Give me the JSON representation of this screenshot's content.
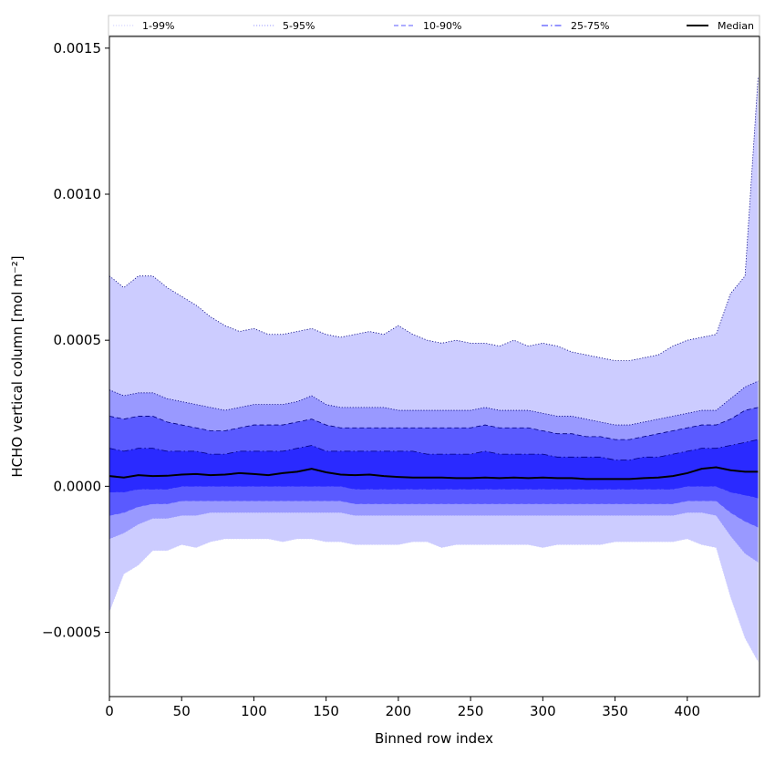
{
  "chart_data": {
    "type": "area",
    "title": "",
    "xlabel": "Binned row index",
    "ylabel": "HCHO vertical column [mol m⁻²]",
    "xlim": [
      0,
      450
    ],
    "ylim": [
      -0.00072,
      0.00154
    ],
    "x_ticks": [
      0,
      50,
      100,
      150,
      200,
      250,
      300,
      350,
      400
    ],
    "x_tick_labels": [
      "0",
      "50",
      "100",
      "150",
      "200",
      "250",
      "300",
      "350",
      "400"
    ],
    "y_ticks": [
      -0.0005,
      0.0,
      0.0005,
      0.001,
      0.0015
    ],
    "y_tick_labels": [
      "−0.0005",
      "0.0000",
      "0.0005",
      "0.0010",
      "0.0015"
    ],
    "grid": false,
    "legend": {
      "placement": "top",
      "ncol": 5
    },
    "x": [
      0,
      10,
      20,
      30,
      40,
      50,
      60,
      70,
      80,
      90,
      100,
      110,
      120,
      130,
      140,
      150,
      160,
      170,
      180,
      190,
      200,
      210,
      220,
      230,
      240,
      250,
      260,
      270,
      280,
      290,
      300,
      310,
      320,
      330,
      340,
      350,
      360,
      370,
      380,
      390,
      400,
      410,
      420,
      430,
      440,
      449
    ],
    "series": [
      {
        "name": "1-99%",
        "style": "dotted",
        "color": "#ccccff",
        "lower": [
          -0.00043,
          -0.0003,
          -0.00027,
          -0.00022,
          -0.00022,
          -0.0002,
          -0.00021,
          -0.00019,
          -0.00018,
          -0.00018,
          -0.00018,
          -0.00018,
          -0.00019,
          -0.00018,
          -0.00018,
          -0.00019,
          -0.00019,
          -0.0002,
          -0.0002,
          -0.0002,
          -0.0002,
          -0.00019,
          -0.00019,
          -0.00021,
          -0.0002,
          -0.0002,
          -0.0002,
          -0.0002,
          -0.0002,
          -0.0002,
          -0.00021,
          -0.0002,
          -0.0002,
          -0.0002,
          -0.0002,
          -0.00019,
          -0.00019,
          -0.00019,
          -0.00019,
          -0.00019,
          -0.00018,
          -0.0002,
          -0.00021,
          -0.00038,
          -0.00052,
          -0.0006
        ],
        "upper": [
          0.00072,
          0.00068,
          0.00072,
          0.00072,
          0.00068,
          0.00065,
          0.00062,
          0.00058,
          0.00055,
          0.00053,
          0.00054,
          0.00052,
          0.00052,
          0.00053,
          0.00054,
          0.00052,
          0.00051,
          0.00052,
          0.00053,
          0.00052,
          0.00055,
          0.00052,
          0.0005,
          0.00049,
          0.0005,
          0.00049,
          0.00049,
          0.00048,
          0.0005,
          0.00048,
          0.00049,
          0.00048,
          0.00046,
          0.00045,
          0.00044,
          0.00043,
          0.00043,
          0.00044,
          0.00045,
          0.00048,
          0.0005,
          0.00051,
          0.00052,
          0.00066,
          0.00072,
          0.0014
        ]
      },
      {
        "name": "5-95%",
        "style": "dotted",
        "color": "#9999ff",
        "lower": [
          -0.00018,
          -0.00016,
          -0.00013,
          -0.00011,
          -0.00011,
          -0.0001,
          -0.0001,
          -9e-05,
          -9e-05,
          -9e-05,
          -9e-05,
          -9e-05,
          -9e-05,
          -9e-05,
          -9e-05,
          -9e-05,
          -9e-05,
          -0.0001,
          -0.0001,
          -0.0001,
          -0.0001,
          -0.0001,
          -0.0001,
          -0.0001,
          -0.0001,
          -0.0001,
          -0.0001,
          -0.0001,
          -0.0001,
          -0.0001,
          -0.0001,
          -0.0001,
          -0.0001,
          -0.0001,
          -0.0001,
          -0.0001,
          -0.0001,
          -0.0001,
          -0.0001,
          -0.0001,
          -9e-05,
          -9e-05,
          -0.0001,
          -0.00017,
          -0.00023,
          -0.00026
        ],
        "upper": [
          0.00033,
          0.00031,
          0.00032,
          0.00032,
          0.0003,
          0.00029,
          0.00028,
          0.00027,
          0.00026,
          0.00027,
          0.00028,
          0.00028,
          0.00028,
          0.00029,
          0.00031,
          0.00028,
          0.00027,
          0.00027,
          0.00027,
          0.00027,
          0.00026,
          0.00026,
          0.00026,
          0.00026,
          0.00026,
          0.00026,
          0.00027,
          0.00026,
          0.00026,
          0.00026,
          0.00025,
          0.00024,
          0.00024,
          0.00023,
          0.00022,
          0.00021,
          0.00021,
          0.00022,
          0.00023,
          0.00024,
          0.00025,
          0.00026,
          0.00026,
          0.0003,
          0.00034,
          0.00036
        ]
      },
      {
        "name": "10-90%",
        "style": "dashed",
        "color": "#5a5aff",
        "lower": [
          -0.0001,
          -9e-05,
          -7e-05,
          -6e-05,
          -6e-05,
          -5e-05,
          -5e-05,
          -5e-05,
          -5e-05,
          -5e-05,
          -5e-05,
          -5e-05,
          -5e-05,
          -5e-05,
          -5e-05,
          -5e-05,
          -5e-05,
          -6e-05,
          -6e-05,
          -6e-05,
          -6e-05,
          -6e-05,
          -6e-05,
          -6e-05,
          -6e-05,
          -6e-05,
          -6e-05,
          -6e-05,
          -6e-05,
          -6e-05,
          -6e-05,
          -6e-05,
          -6e-05,
          -6e-05,
          -6e-05,
          -6e-05,
          -6e-05,
          -6e-05,
          -6e-05,
          -6e-05,
          -5e-05,
          -5e-05,
          -5e-05,
          -9e-05,
          -0.00012,
          -0.00014
        ],
        "upper": [
          0.00024,
          0.00023,
          0.00024,
          0.00024,
          0.00022,
          0.00021,
          0.0002,
          0.00019,
          0.00019,
          0.0002,
          0.00021,
          0.00021,
          0.00021,
          0.00022,
          0.00023,
          0.00021,
          0.0002,
          0.0002,
          0.0002,
          0.0002,
          0.0002,
          0.0002,
          0.0002,
          0.0002,
          0.0002,
          0.0002,
          0.00021,
          0.0002,
          0.0002,
          0.0002,
          0.00019,
          0.00018,
          0.00018,
          0.00017,
          0.00017,
          0.00016,
          0.00016,
          0.00017,
          0.00018,
          0.00019,
          0.0002,
          0.00021,
          0.00021,
          0.00023,
          0.00026,
          0.00027
        ]
      },
      {
        "name": "25-75%",
        "style": "dashdot",
        "color": "#2a2aff",
        "lower": [
          -2e-05,
          -2e-05,
          -1e-05,
          -1e-05,
          -1e-05,
          0.0,
          0.0,
          0.0,
          0.0,
          0.0,
          0.0,
          0.0,
          0.0,
          0.0,
          0.0,
          0.0,
          0.0,
          -1e-05,
          -1e-05,
          -1e-05,
          -1e-05,
          -1e-05,
          -1e-05,
          -1e-05,
          -1e-05,
          -1e-05,
          -1e-05,
          -1e-05,
          -1e-05,
          -1e-05,
          -1e-05,
          -1e-05,
          -1e-05,
          -1e-05,
          -1e-05,
          -1e-05,
          -1e-05,
          -1e-05,
          -1e-05,
          -1e-05,
          0.0,
          0.0,
          0.0,
          -2e-05,
          -3e-05,
          -4e-05
        ],
        "upper": [
          0.00013,
          0.00012,
          0.00013,
          0.00013,
          0.00012,
          0.00012,
          0.00012,
          0.00011,
          0.00011,
          0.00012,
          0.00012,
          0.00012,
          0.00012,
          0.00013,
          0.00014,
          0.00012,
          0.00012,
          0.00012,
          0.00012,
          0.00012,
          0.00012,
          0.00012,
          0.00011,
          0.00011,
          0.00011,
          0.00011,
          0.00012,
          0.00011,
          0.00011,
          0.00011,
          0.00011,
          0.0001,
          0.0001,
          0.0001,
          0.0001,
          9e-05,
          9e-05,
          0.0001,
          0.0001,
          0.00011,
          0.00012,
          0.00013,
          0.00013,
          0.00014,
          0.00015,
          0.00016
        ]
      },
      {
        "name": "Median",
        "style": "solid",
        "color": "#000000",
        "values": [
          3.5e-05,
          3e-05,
          3.8e-05,
          3.5e-05,
          3.6e-05,
          4e-05,
          4.2e-05,
          3.8e-05,
          4e-05,
          4.5e-05,
          4.2e-05,
          3.8e-05,
          4.5e-05,
          5e-05,
          6e-05,
          4.8e-05,
          4e-05,
          3.8e-05,
          4e-05,
          3.5e-05,
          3.2e-05,
          3e-05,
          3e-05,
          3e-05,
          2.8e-05,
          2.8e-05,
          3e-05,
          2.8e-05,
          3e-05,
          2.8e-05,
          3e-05,
          2.8e-05,
          2.8e-05,
          2.5e-05,
          2.5e-05,
          2.5e-05,
          2.5e-05,
          2.8e-05,
          3e-05,
          3.5e-05,
          4.5e-05,
          6e-05,
          6.5e-05,
          5.5e-05,
          5e-05,
          5e-05
        ]
      }
    ]
  }
}
